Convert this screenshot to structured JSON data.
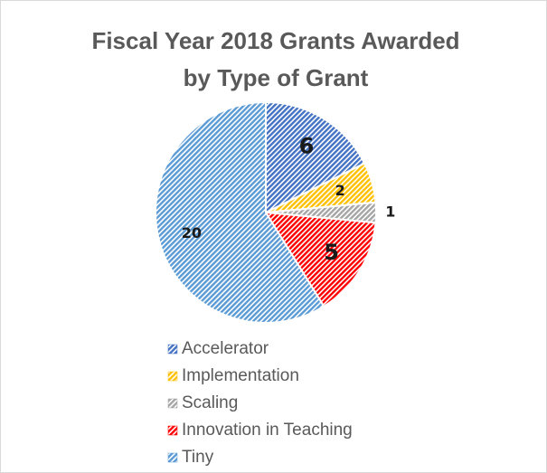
{
  "chart_data": {
    "type": "pie",
    "title_lines": [
      "Fiscal Year 2018 Grants Awarded",
      "by Type of Grant"
    ],
    "categories": [
      "Accelerator",
      "Implementation",
      "Scaling",
      "Innovation in Teaching",
      "Tiny"
    ],
    "values": [
      6,
      2,
      1,
      5,
      20
    ],
    "colors": [
      "#4472c4",
      "#ffc000",
      "#a5a5a5",
      "#ff0000",
      "#5b9bd5"
    ],
    "legend": "bottom"
  }
}
